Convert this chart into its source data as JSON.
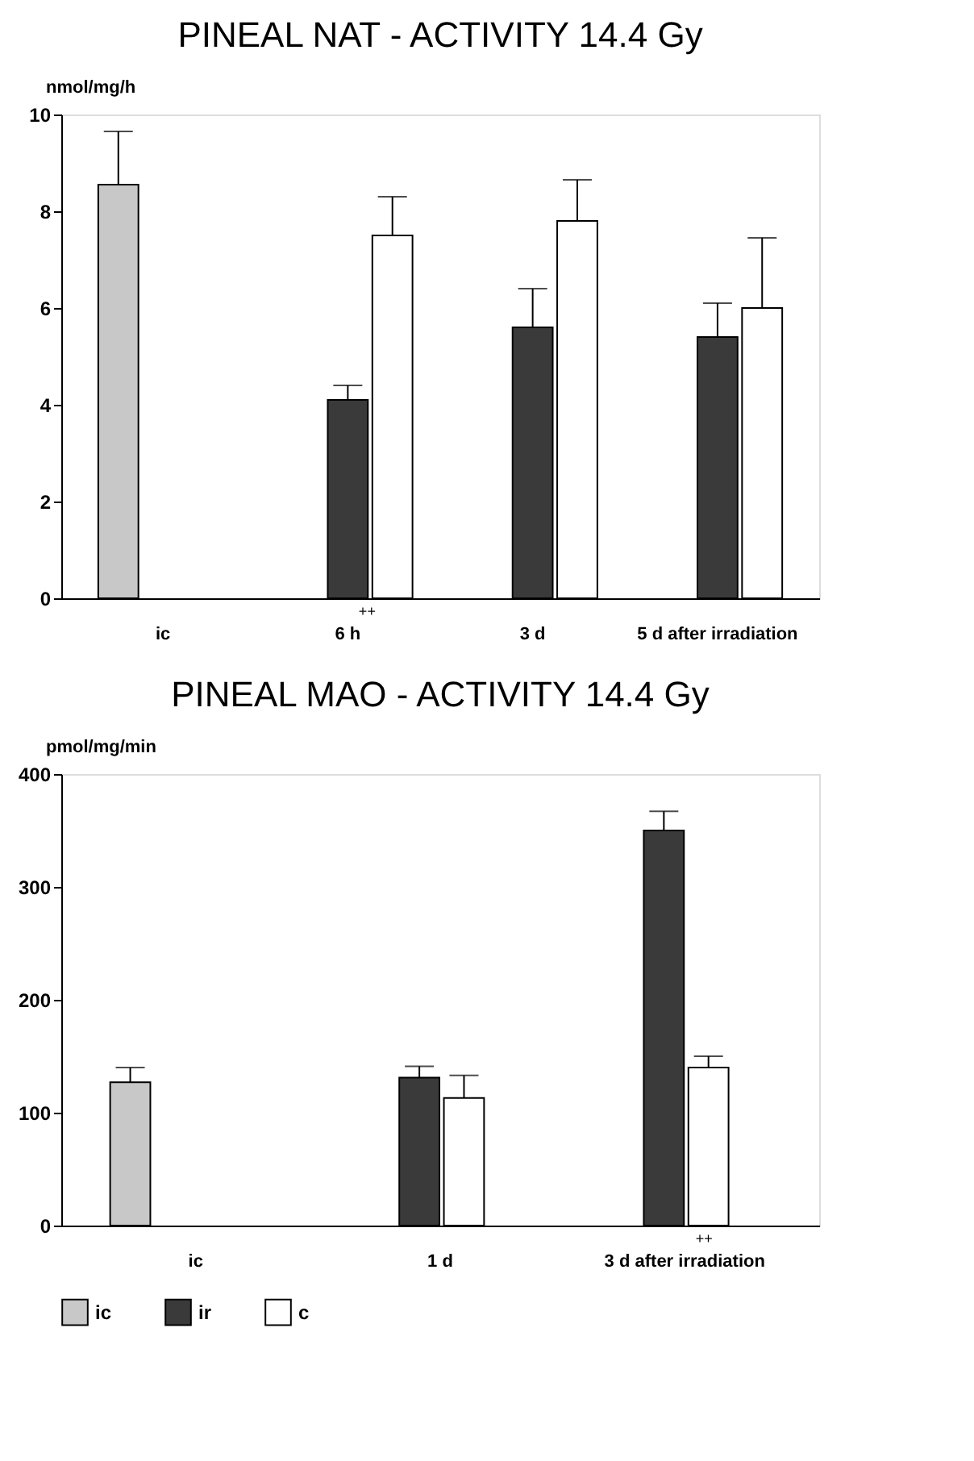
{
  "chart_data": [
    {
      "type": "bar",
      "title": "PINEAL NAT - ACTIVITY  14.4 Gy",
      "ylabel": "nmol/mg/h",
      "categories": [
        "ic",
        "6 h",
        "3 d",
        "5 d after irradiation"
      ],
      "series": [
        {
          "color": "#c8c8c8",
          "values": [
            8.55,
            null,
            null,
            null
          ],
          "errors": [
            [
              8.55,
              9.65
            ],
            null,
            null,
            null
          ]
        },
        {
          "color": "#3a3a3a",
          "values": [
            null,
            4.1,
            5.6,
            5.4
          ],
          "errors": [
            null,
            [
              4.1,
              4.4
            ],
            [
              5.6,
              6.4
            ],
            [
              5.4,
              6.1
            ]
          ]
        },
        {
          "color": "#ffffff",
          "values": [
            null,
            7.5,
            7.8,
            6.0
          ],
          "errors": [
            null,
            [
              7.5,
              8.3
            ],
            [
              7.8,
              8.65
            ],
            [
              6.0,
              7.45
            ]
          ]
        }
      ],
      "ylim": [
        0,
        10
      ],
      "yticks": [
        0,
        2,
        4,
        6,
        8,
        10
      ],
      "grid": false,
      "legend": false,
      "annotations": [
        {
          "text": "++",
          "x": "6 h",
          "y": 0
        }
      ]
    },
    {
      "type": "bar",
      "title": "PINEAL MAO - ACTIVITY  14.4 Gy",
      "ylabel": "pmol/mg/min",
      "categories": [
        "ic",
        "1 d",
        "3 d after irradiation"
      ],
      "series": [
        {
          "name": "ic",
          "color": "#c8c8c8",
          "values": [
            127,
            null,
            null
          ],
          "errors": [
            [
              127,
              140
            ],
            null,
            null
          ]
        },
        {
          "name": "ir",
          "color": "#3a3a3a",
          "values": [
            null,
            131,
            350
          ],
          "errors": [
            null,
            [
              131,
              141
            ],
            [
              350,
              367
            ]
          ]
        },
        {
          "name": "c",
          "color": "#ffffff",
          "values": [
            null,
            113,
            140
          ],
          "errors": [
            null,
            [
              113,
              133
            ],
            [
              140,
              150
            ]
          ]
        }
      ],
      "ylim": [
        0,
        400
      ],
      "yticks": [
        0,
        100,
        200,
        300,
        400
      ],
      "grid": false,
      "legend": "bottom",
      "annotations": [
        {
          "text": "++",
          "x": "3 d after irradiation",
          "y": 0
        }
      ]
    }
  ]
}
